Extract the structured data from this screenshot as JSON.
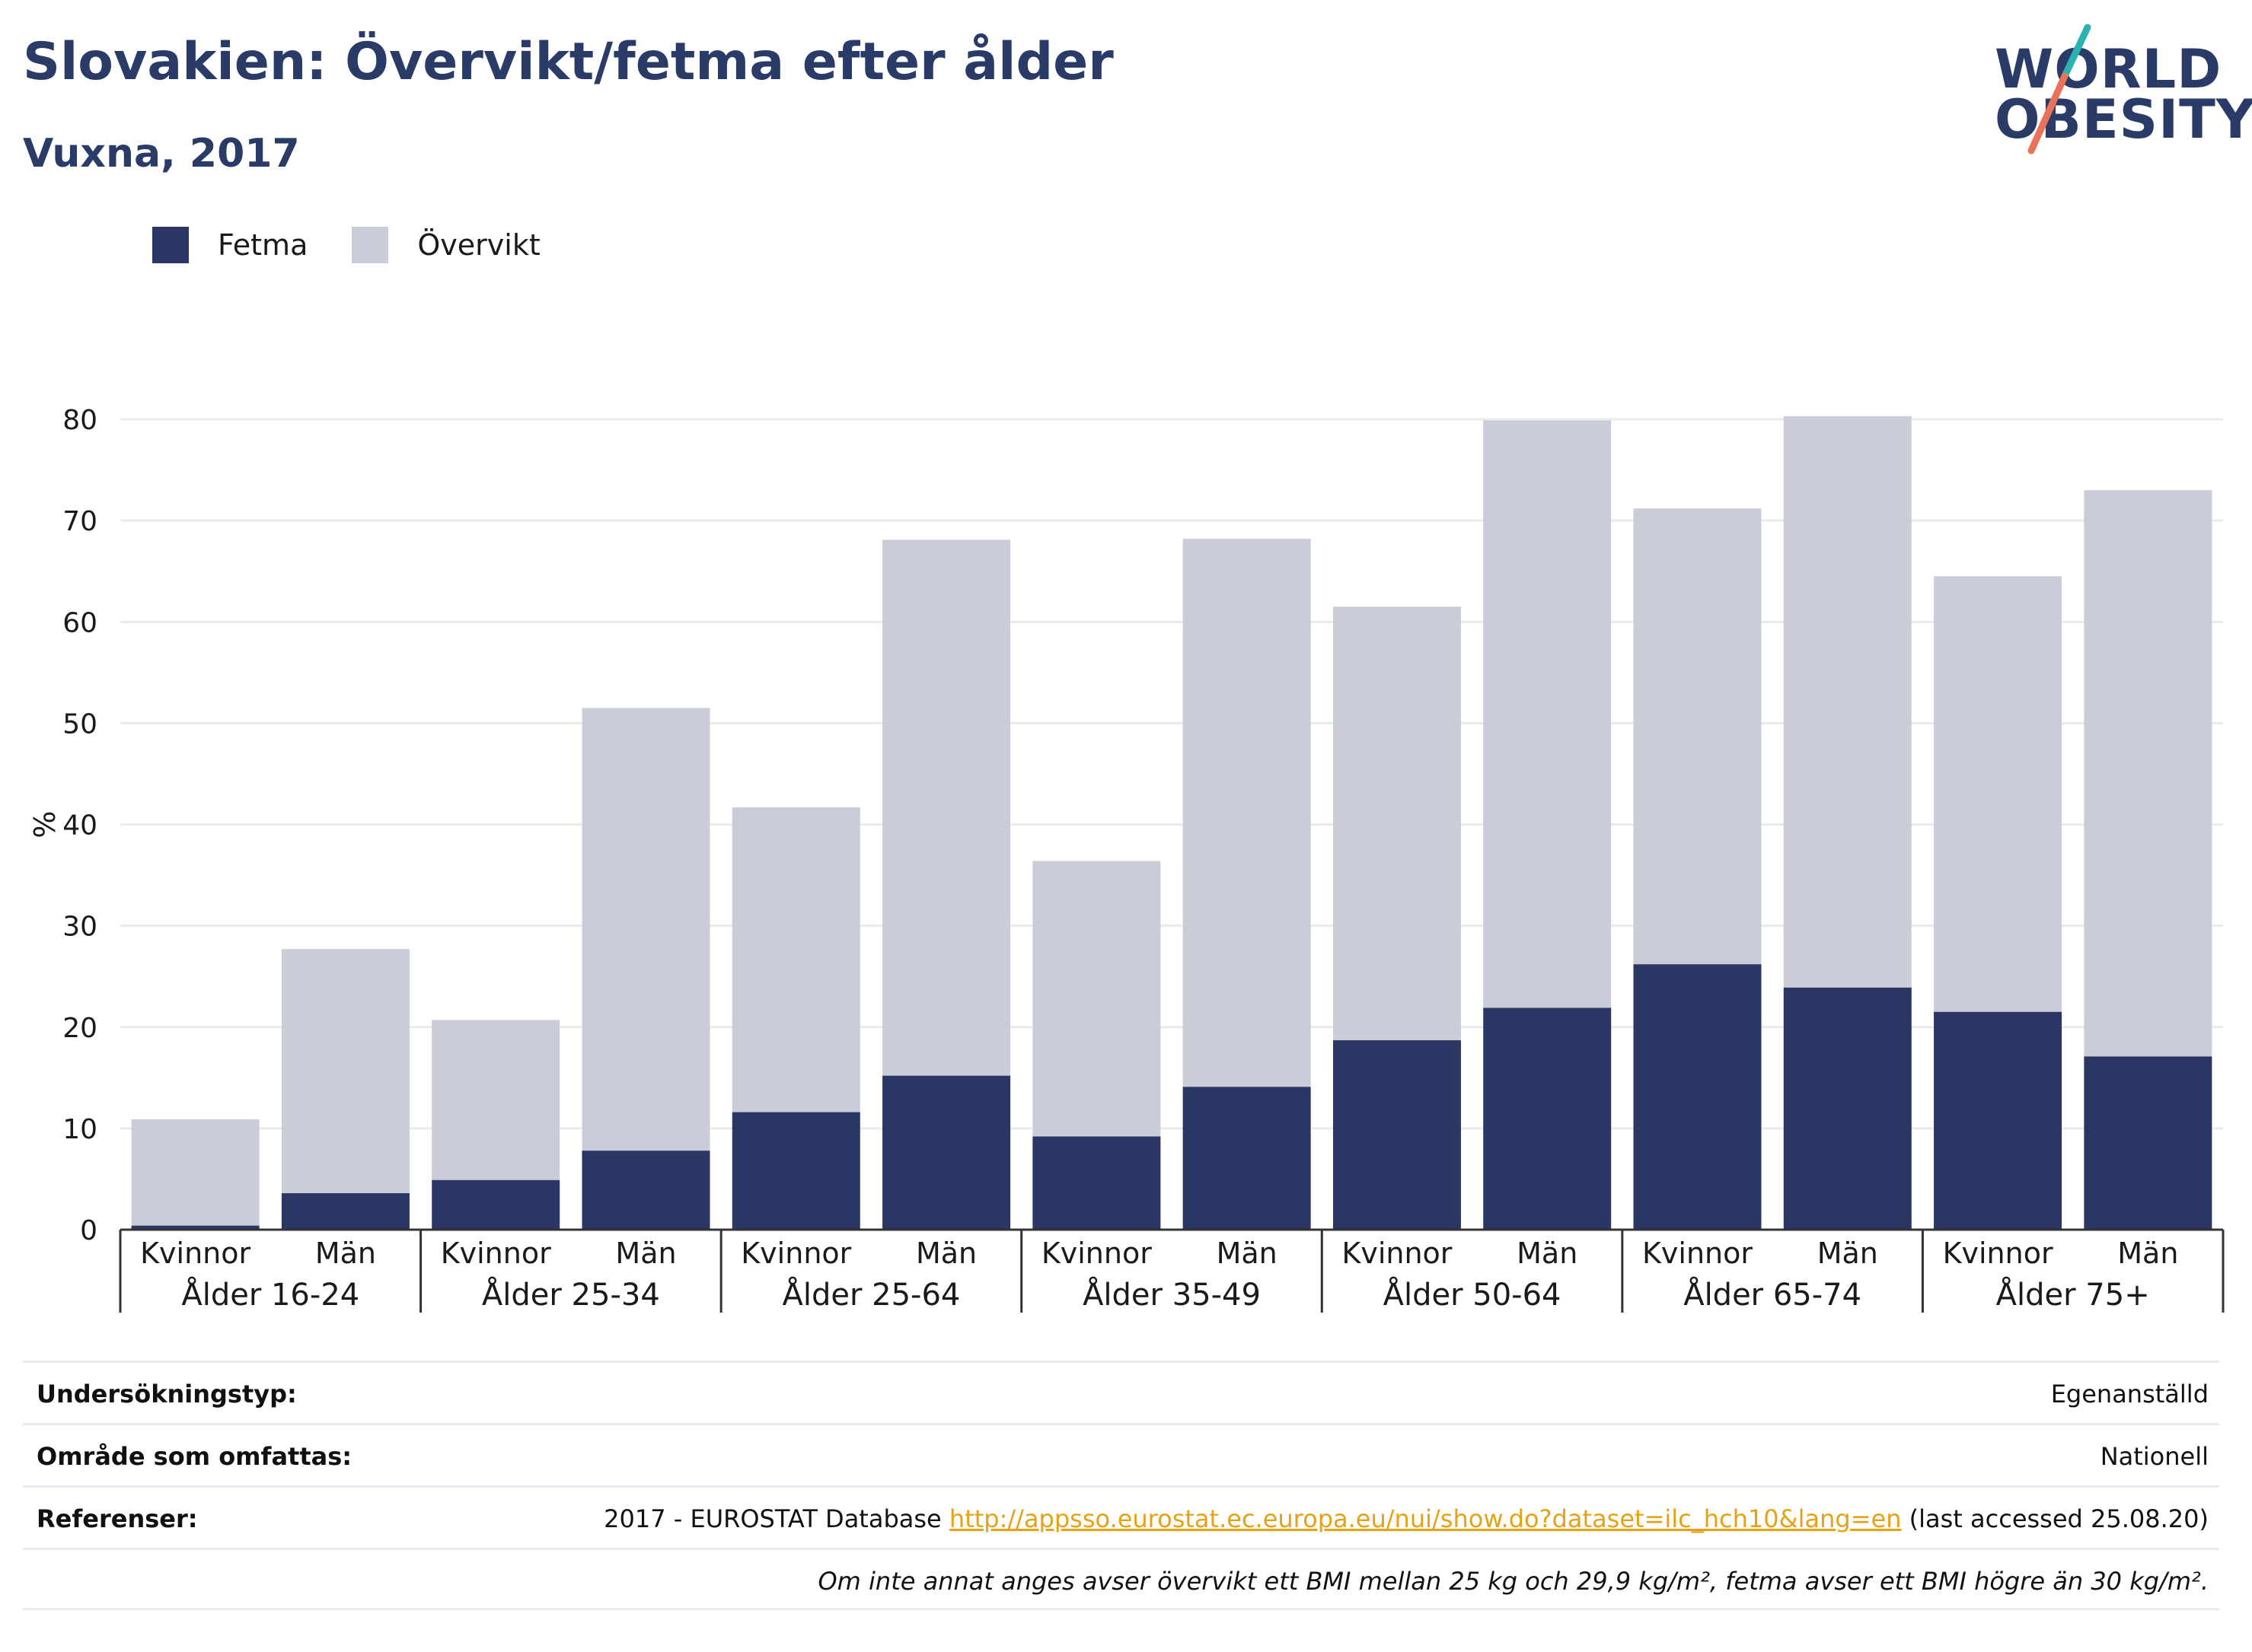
{
  "header": {
    "title": "Slovakien: Övervikt/fetma efter ålder",
    "subtitle": "Vuxna, 2017"
  },
  "logo": {
    "line1": "WORLD",
    "line2": "OBESITY",
    "colors": {
      "text": "#2a3b67",
      "accent_teal": "#2bb3b1",
      "accent_coral": "#e8735a"
    }
  },
  "legend": [
    {
      "label": "Fetma",
      "color": "#2a3663"
    },
    {
      "label": "Övervikt",
      "color": "#caccd8"
    }
  ],
  "chart_data": {
    "type": "bar",
    "stacked": true,
    "title": "Slovakien: Övervikt/fetma efter ålder",
    "subtitle": "Vuxna, 2017",
    "ylabel": "%",
    "ylim": [
      0,
      80
    ],
    "yticks": [
      0,
      10,
      20,
      30,
      40,
      50,
      60,
      70,
      80
    ],
    "grid": true,
    "legend_position": "top-left",
    "groups": [
      "Ålder 16-24",
      "Ålder 25-34",
      "Ålder 25-64",
      "Ålder 35-49",
      "Ålder 50-64",
      "Ålder 65-74",
      "Ålder 75+"
    ],
    "sub_categories": [
      "Kvinnor",
      "Män"
    ],
    "categories": [
      "Kvinnor",
      "Män",
      "Kvinnor",
      "Män",
      "Kvinnor",
      "Män",
      "Kvinnor",
      "Män",
      "Kvinnor",
      "Män",
      "Kvinnor",
      "Män",
      "Kvinnor",
      "Män"
    ],
    "series": [
      {
        "name": "Fetma",
        "color": "#2a3663",
        "values": [
          0.4,
          3.6,
          4.9,
          7.8,
          11.6,
          15.2,
          9.2,
          14.1,
          18.7,
          21.9,
          26.2,
          23.9,
          21.5,
          17.1
        ]
      },
      {
        "name": "Övervikt",
        "color": "#caccd8",
        "values": [
          10.5,
          24.1,
          15.8,
          43.7,
          30.1,
          52.9,
          27.2,
          54.1,
          42.8,
          58.0,
          45.0,
          56.4,
          43.0,
          55.9
        ]
      }
    ],
    "totals": [
      10.9,
      27.7,
      20.7,
      51.5,
      41.7,
      68.1,
      36.4,
      68.2,
      61.5,
      79.9,
      71.2,
      80.3,
      64.5,
      73.0
    ]
  },
  "meta": {
    "rows": [
      {
        "label": "Undersökningstyp:",
        "value": "Egenanställd"
      },
      {
        "label": "Område som omfattas:",
        "value": "Nationell"
      },
      {
        "label": "Referenser:",
        "value_prefix": "2017 - EUROSTAT Database ",
        "link": "http://appsso.eurostat.ec.europa.eu/nui/show.do?dataset=ilc_hch10&lang=en",
        "value_suffix": " (last accessed 25.08.20)"
      }
    ],
    "note": "Om inte annat anges avser övervikt ett BMI mellan 25 kg och 29,9 kg/m², fetma avser ett BMI högre än 30 kg/m²."
  }
}
